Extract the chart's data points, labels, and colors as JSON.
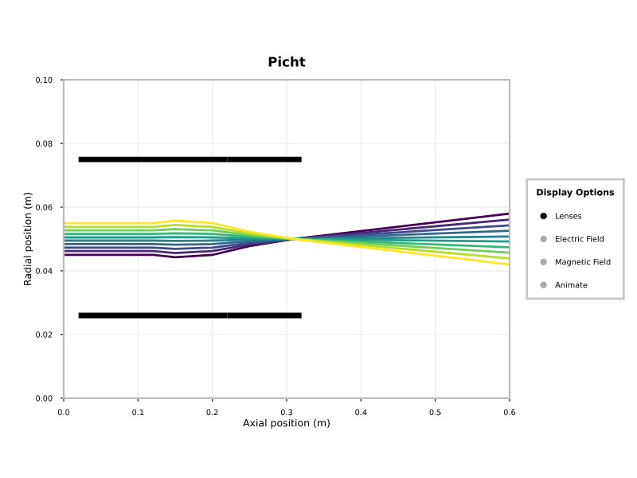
{
  "chart_data": {
    "type": "line",
    "title": "Picht",
    "xlabel": "Axial position (m)",
    "ylabel": "Radial position (m)",
    "legend_title": "Display Options",
    "legend": "right",
    "xlim": [
      0,
      0.6
    ],
    "xticks": [
      {
        "value": 0,
        "label": "0.0"
      },
      0.1,
      0.2,
      0.3,
      0.4,
      0.5,
      0.6
    ],
    "ylim": [
      0,
      0.1
    ],
    "yticks": [
      {
        "value": 0,
        "label": "0.00"
      },
      {
        "value": 0.02,
        "label": "0.02"
      },
      {
        "value": 0.04,
        "label": "0.04"
      },
      {
        "value": 0.06,
        "label": "0.06"
      },
      {
        "value": 0.08,
        "label": "0.08"
      },
      {
        "value": 0.1,
        "label": "0.10"
      }
    ],
    "grid": true,
    "marker": "none",
    "line_style": "solid",
    "x": [
      0,
      0.12,
      0.15,
      0.2,
      0.25,
      0.31,
      0.6
    ],
    "series": [
      {
        "color": "#440154",
        "values": [
          0.045,
          0.045,
          0.0443,
          0.045,
          0.0478,
          0.05,
          0.058
        ]
      },
      {
        "color": "#482878",
        "values": [
          0.0462,
          0.0462,
          0.0456,
          0.0462,
          0.0483,
          0.05,
          0.0561
        ]
      },
      {
        "color": "#3e4989",
        "values": [
          0.0473,
          0.0473,
          0.0469,
          0.0473,
          0.0488,
          0.05,
          0.0543
        ]
      },
      {
        "color": "#31688e",
        "values": [
          0.0484,
          0.0484,
          0.0482,
          0.0484,
          0.0493,
          0.05,
          0.0526
        ]
      },
      {
        "color": "#26828e",
        "values": [
          0.0495,
          0.0495,
          0.0494,
          0.0495,
          0.0498,
          0.05,
          0.0508
        ]
      },
      {
        "color": "#1f9e89",
        "values": [
          0.0505,
          0.0505,
          0.0506,
          0.0505,
          0.0502,
          0.05,
          0.0492
        ]
      },
      {
        "color": "#35b779",
        "values": [
          0.0516,
          0.0516,
          0.0518,
          0.0516,
          0.0507,
          0.05,
          0.0474
        ]
      },
      {
        "color": "#6ece58",
        "values": [
          0.0527,
          0.0527,
          0.0531,
          0.0527,
          0.0512,
          0.05,
          0.0457
        ]
      },
      {
        "color": "#b5de2b",
        "values": [
          0.0538,
          0.0538,
          0.0544,
          0.0538,
          0.0517,
          0.05,
          0.0439
        ]
      },
      {
        "color": "#fde725",
        "values": [
          0.055,
          0.055,
          0.0558,
          0.055,
          0.0523,
          0.05,
          0.042
        ]
      },
      {
        "name": "Lenses",
        "color": "#000000",
        "x": [
          0.02,
          0.12,
          0.22,
          0.32
        ],
        "values": [
          0.075,
          0.075,
          0.075,
          0.075
        ]
      },
      {
        "color": "#000000",
        "x": [
          0.02,
          0.12,
          0.22,
          0.32
        ],
        "values": [
          0.026,
          0.026,
          0.026,
          0.026
        ]
      }
    ],
    "annotations": [
      "Electric Field",
      "Magnetic Field",
      "Animate"
    ]
  }
}
